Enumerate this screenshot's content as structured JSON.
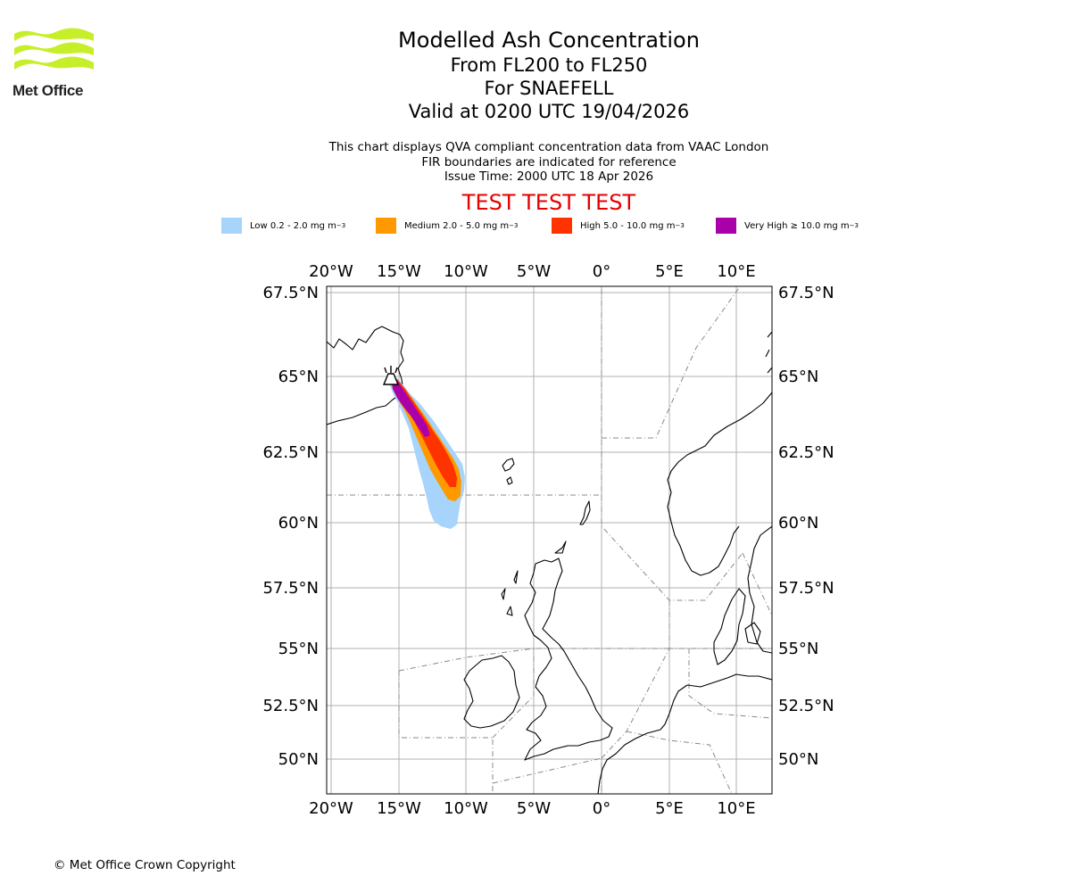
{
  "logo": {
    "text": "Met Office"
  },
  "title": {
    "line1": "Modelled Ash Concentration",
    "line2": "From FL200 to FL250",
    "line3": "For SNAEFELL",
    "line4": "Valid at 0200 UTC 19/04/2026"
  },
  "subtitle": {
    "line1": "This chart displays QVA compliant concentration data from VAAC London",
    "line2": "FIR boundaries are indicated for reference",
    "line3": "Issue Time: 2000 UTC 18 Apr 2026"
  },
  "banner": "TEST TEST TEST",
  "legend": [
    {
      "label": "Low 0.2 - 2.0 mg m",
      "exp": "−3",
      "color": "#a6d4fa"
    },
    {
      "label": "Medium 2.0 - 5.0 mg m",
      "exp": "−3",
      "color": "#fe9900"
    },
    {
      "label": "High 5.0 - 10.0 mg m",
      "exp": "−3",
      "color": "#ff3300"
    },
    {
      "label": "Very High ≥ 10.0 mg m",
      "exp": "−3",
      "color": "#aa00aa"
    }
  ],
  "map": {
    "lon_ticks": [
      "20°W",
      "15°W",
      "10°W",
      "5°W",
      "0°",
      "5°E",
      "10°E"
    ],
    "lat_ticks": [
      "67.5°N",
      "65°N",
      "62.5°N",
      "60°N",
      "57.5°N",
      "55°N",
      "52.5°N",
      "50°N"
    ],
    "volcano": "SNAEFELL"
  },
  "copyright": "© Met Office Crown Copyright"
}
